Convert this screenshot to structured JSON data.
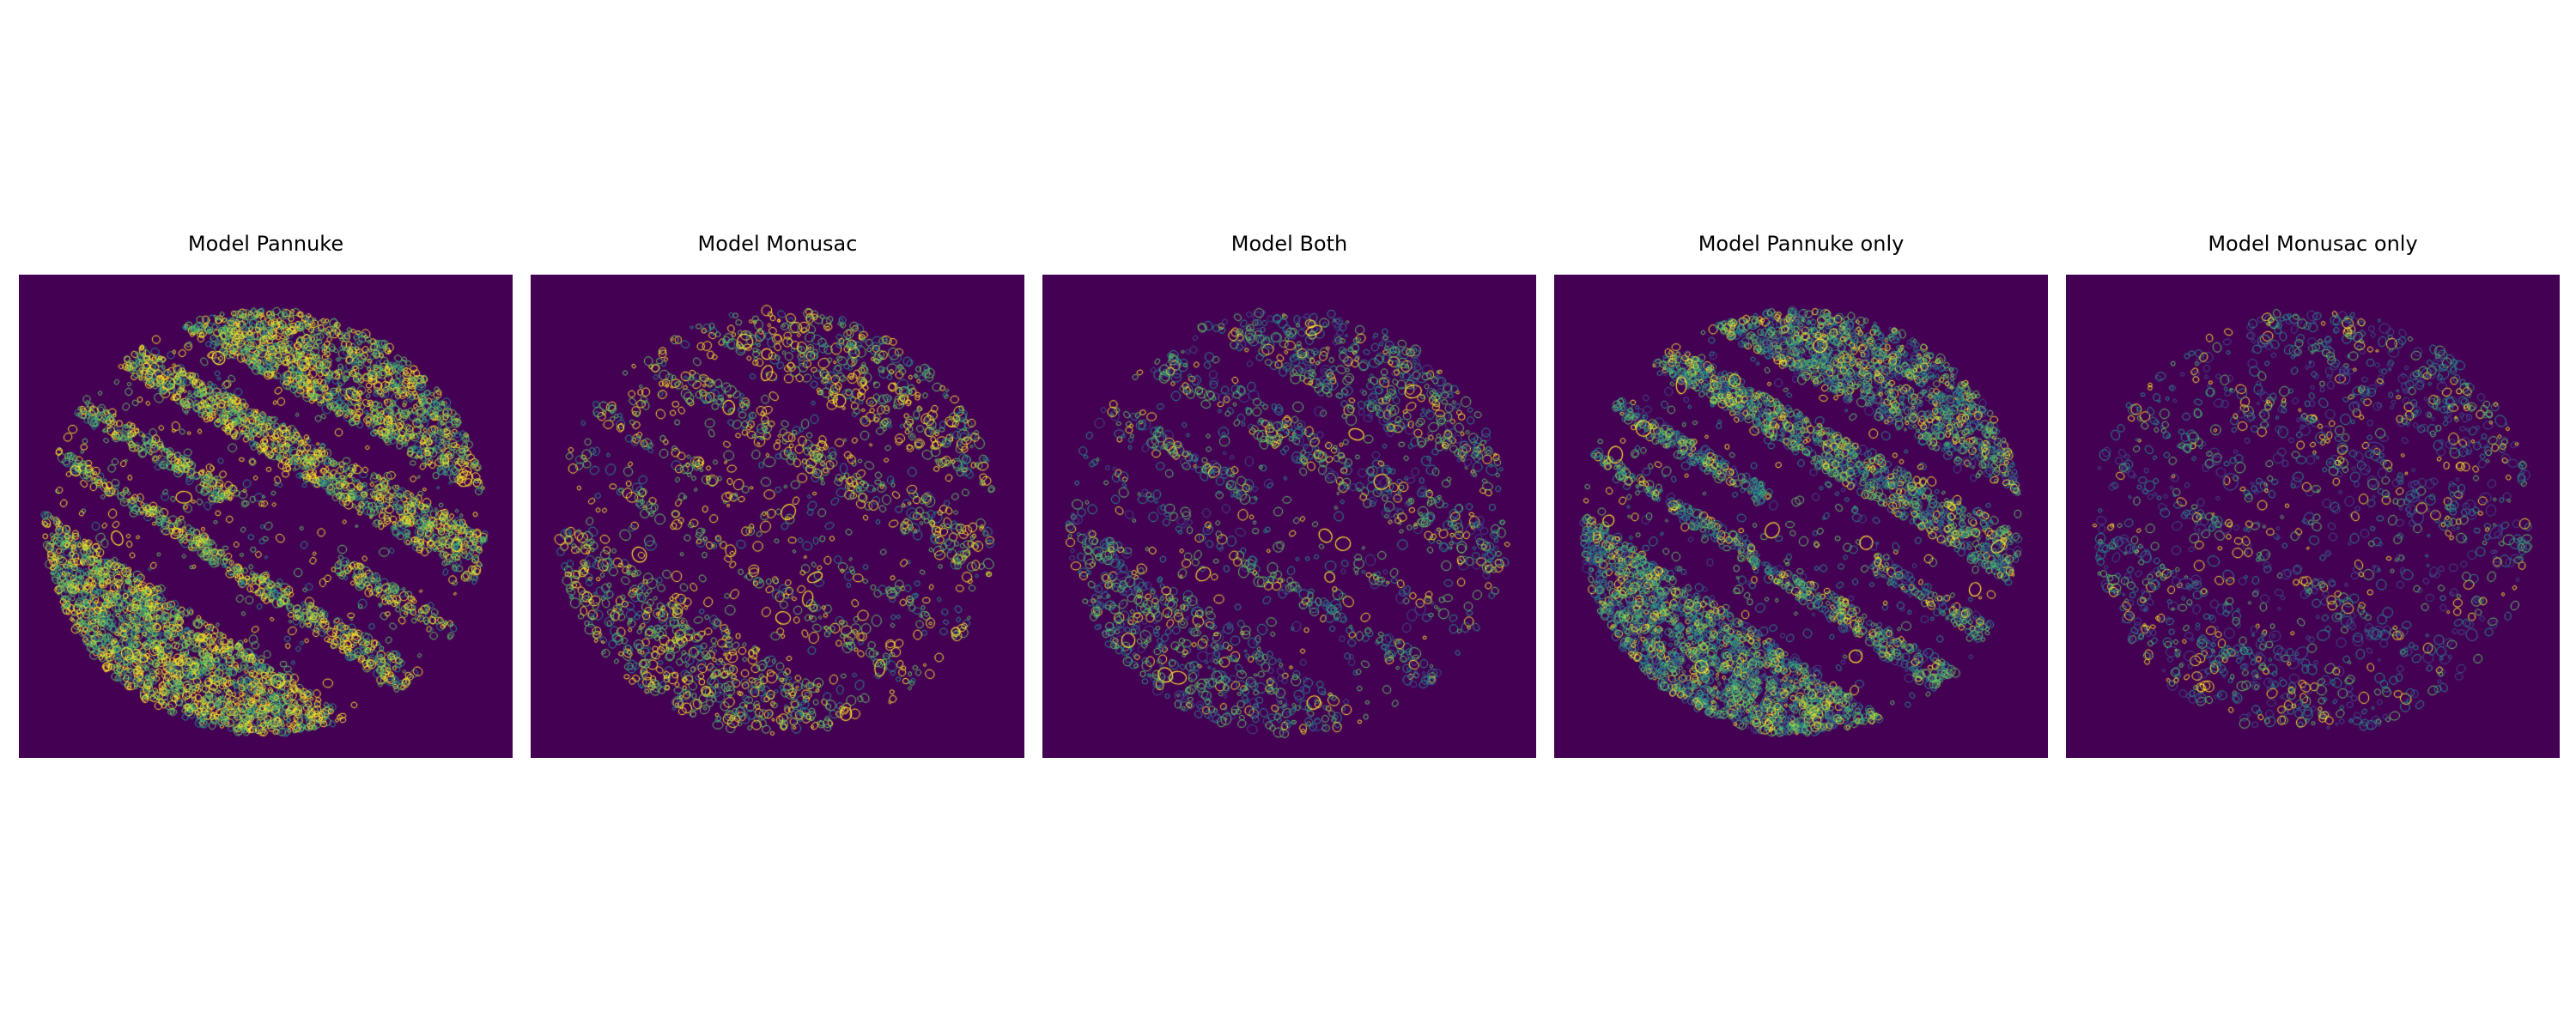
{
  "figure": {
    "colors": {
      "background": "#440154",
      "colormap": [
        "#440154",
        "#3b528b",
        "#21918c",
        "#5ec962",
        "#fde725"
      ]
    },
    "panels": [
      {
        "title": "Model Pannuke",
        "density": "high",
        "palette": "bright"
      },
      {
        "title": "Model Monusac",
        "density": "medium",
        "palette": "bright"
      },
      {
        "title": "Model Both",
        "density": "medium",
        "palette": "mixed"
      },
      {
        "title": "Model Pannuke only",
        "density": "high",
        "palette": "mixed"
      },
      {
        "title": "Model Monusac only",
        "density": "low",
        "palette": "dim"
      }
    ]
  }
}
